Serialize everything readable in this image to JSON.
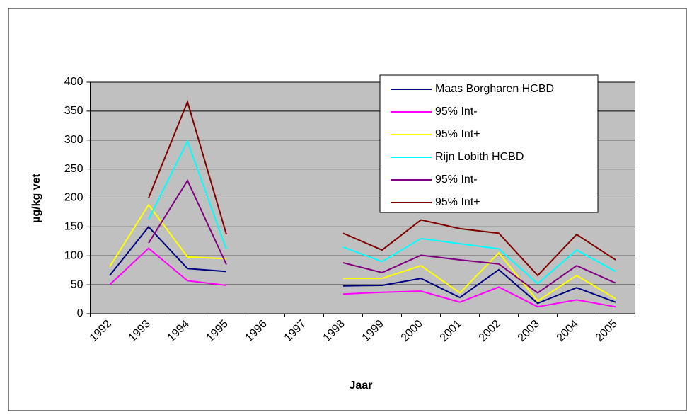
{
  "chart_data": {
    "type": "line",
    "x_label": "Jaar",
    "y_label": "µg/kg vet",
    "categories": [
      "1992",
      "1993",
      "1994",
      "1995",
      "1996",
      "1997",
      "1998",
      "1999",
      "2000",
      "2001",
      "2002",
      "2003",
      "2004",
      "2005"
    ],
    "series": [
      {
        "name": "Maas Borgharen HCBD",
        "color": "#000080",
        "values": [
          66,
          150,
          78,
          73,
          null,
          null,
          48,
          49,
          61,
          28,
          76,
          18,
          45,
          20
        ]
      },
      {
        "name": "95% Int-",
        "color": "#ff00ff",
        "values": [
          50,
          113,
          57,
          49,
          null,
          null,
          34,
          37,
          39,
          20,
          46,
          12,
          24,
          12
        ]
      },
      {
        "name": "95% Int+",
        "color": "#ffff00",
        "values": [
          81,
          188,
          98,
          95,
          null,
          null,
          61,
          61,
          83,
          36,
          105,
          22,
          66,
          26
        ]
      },
      {
        "name": "Rijn Lobith HCBD",
        "color": "#00ffff",
        "values": [
          null,
          163,
          298,
          111,
          null,
          null,
          115,
          90,
          130,
          121,
          112,
          52,
          110,
          73
        ]
      },
      {
        "name": "95% Int-",
        "color": "#800080",
        "values": [
          null,
          122,
          230,
          85,
          null,
          null,
          88,
          71,
          101,
          93,
          86,
          36,
          83,
          53
        ]
      },
      {
        "name": "95% Int+",
        "color": "#800000",
        "values": [
          null,
          200,
          366,
          137,
          null,
          null,
          139,
          110,
          162,
          147,
          139,
          66,
          137,
          93
        ]
      }
    ],
    "ylim": [
      0,
      400
    ],
    "yticks": [
      0,
      50,
      100,
      150,
      200,
      250,
      300,
      350,
      400
    ],
    "grid": true,
    "legend": "top-right"
  }
}
